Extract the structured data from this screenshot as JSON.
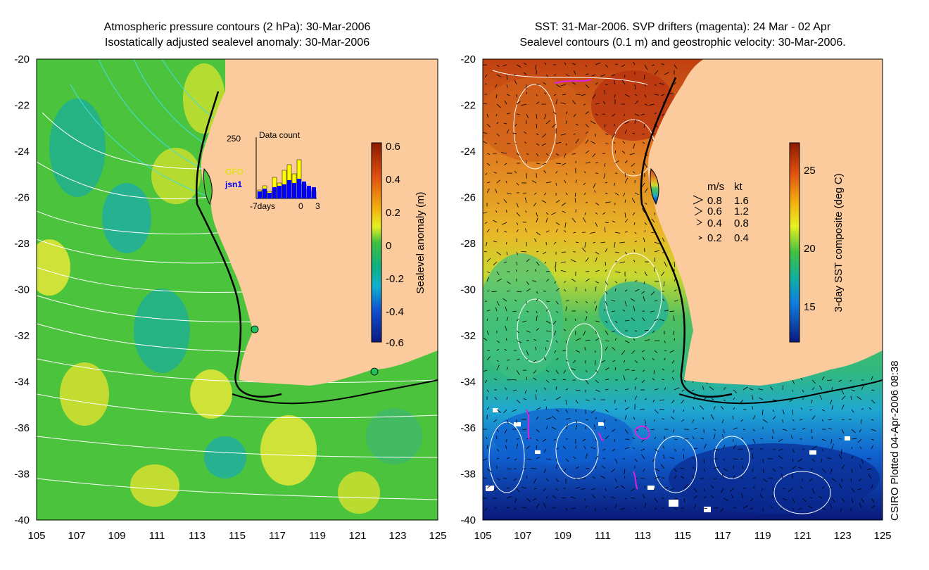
{
  "left_panel": {
    "title_line1": "Atmospheric pressure contours (2 hPa): 30-Mar-2006",
    "title_line2": "Isostatically adjusted sealevel anomaly: 30-Mar-2006",
    "colorbar_label": "Sealevel anomaly (m)",
    "colorbar_ticks": [
      "0.6",
      "0.4",
      "0.2",
      "0",
      "-0.2",
      "-0.4",
      "-0.6"
    ],
    "inset": {
      "title": "Data count",
      "y_max_label": "250",
      "legend_gfo": "GFO",
      "legend_jsn": "jsn1",
      "x_labels": [
        "-7days",
        "0",
        "3"
      ],
      "gfo_color": "#ffff00",
      "jsn_color": "#0000ff"
    }
  },
  "right_panel": {
    "title_line1": "SST: 31-Mar-2006. SVP drifters (magenta): 24 Mar - 02 Apr",
    "title_line2": "Sealevel contours (0.1 m) and geostrophic velocity: 30-Mar-2006.",
    "colorbar_label": "3-day SST composite (deg C)",
    "colorbar_ticks": [
      "25",
      "20",
      "15"
    ],
    "speed_legend": {
      "header_ms": "m/s",
      "header_kt": "kt",
      "rows": [
        {
          "ms": "0.8",
          "kt": "1.6"
        },
        {
          "ms": "0.6",
          "kt": "1.2"
        },
        {
          "ms": "0.4",
          "kt": "0.8"
        },
        {
          "ms": "0.2",
          "kt": "0.4"
        }
      ]
    }
  },
  "y_axis_labels": [
    "-20",
    "-22",
    "-24",
    "-26",
    "-28",
    "-30",
    "-32",
    "-34",
    "-36",
    "-38",
    "-40"
  ],
  "x_axis_labels": [
    "105",
    "107",
    "109",
    "111",
    "113",
    "115",
    "117",
    "119",
    "121",
    "123",
    "125"
  ],
  "credit": "CSIRO Plotted 04-Apr-2006 08:38",
  "colors": {
    "land": "#fccb9d",
    "ocean_left": "#4cc33c",
    "coastline": "#000000",
    "contour_white": "#ffffff",
    "contour_cyan": "#40e0e0",
    "drifter": "#e020e0"
  }
}
